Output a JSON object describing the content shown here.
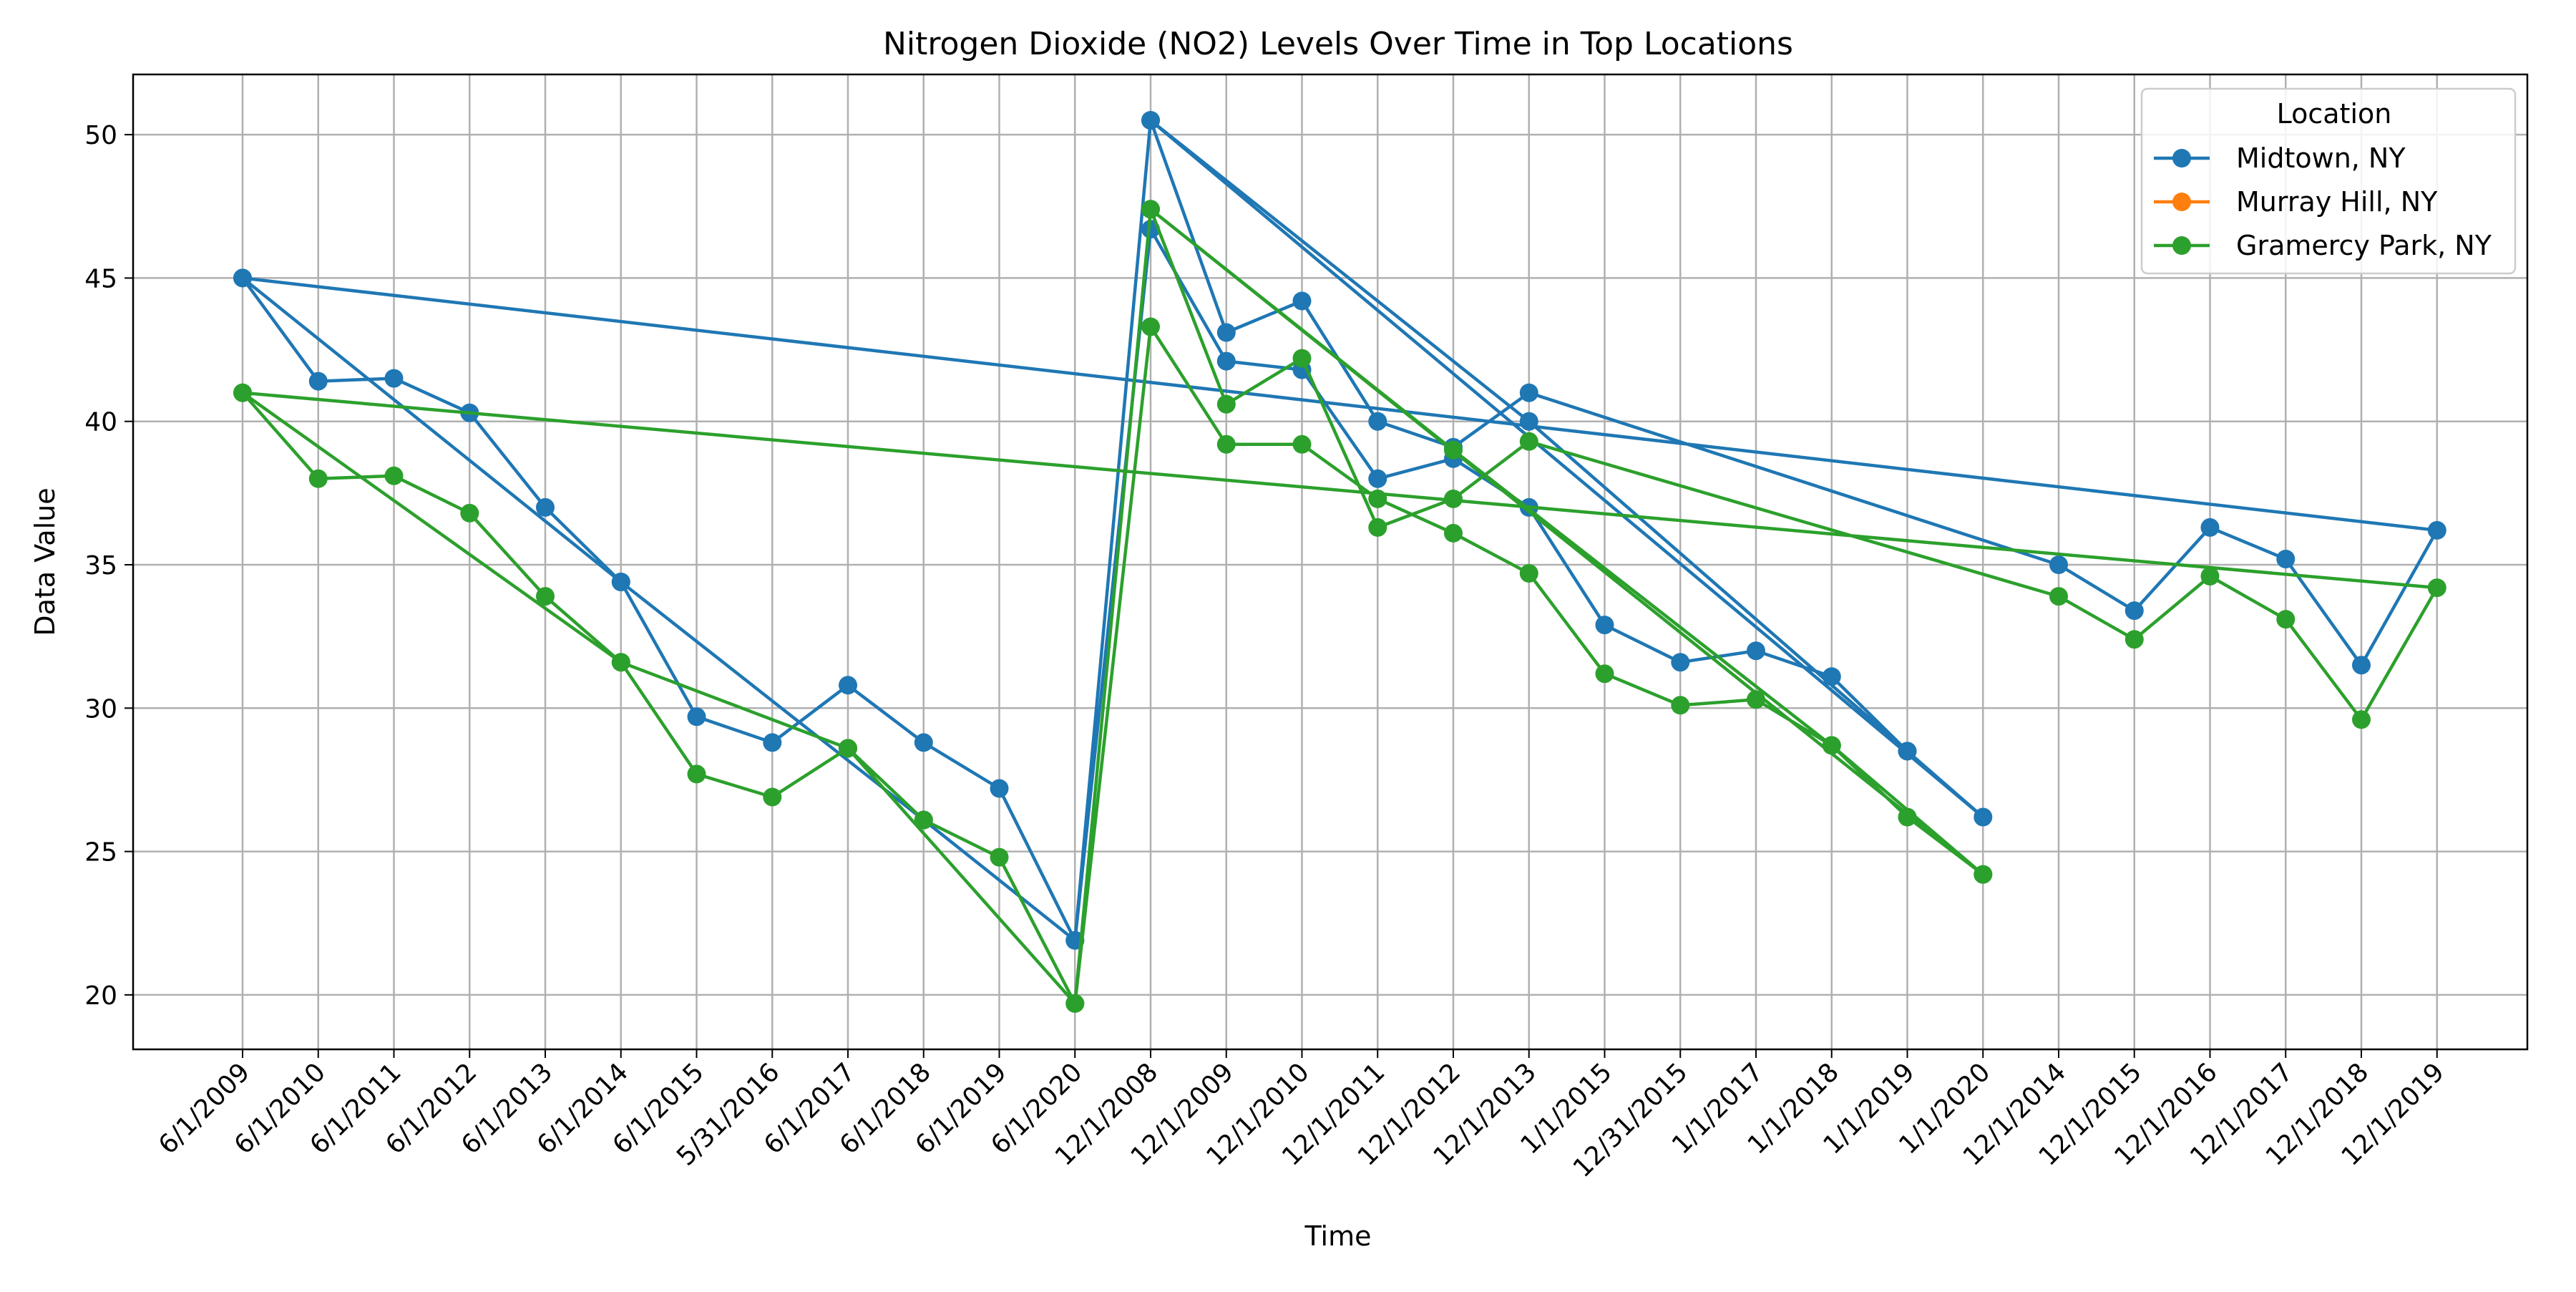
{
  "chart_data": {
    "type": "line",
    "title": "Nitrogen Dioxide (NO2) Levels Over Time in Top Locations",
    "xlabel": "Time",
    "ylabel": "Data Value",
    "ylim": [
      18.1,
      52.1
    ],
    "yticks": [
      20,
      25,
      30,
      35,
      40,
      45,
      50
    ],
    "categories": [
      "6/1/2009",
      "6/1/2010",
      "6/1/2011",
      "6/1/2012",
      "6/1/2013",
      "6/1/2014",
      "6/1/2015",
      "5/31/2016",
      "6/1/2017",
      "6/1/2018",
      "6/1/2019",
      "6/1/2020",
      "12/1/2008",
      "12/1/2009",
      "12/1/2010",
      "12/1/2011",
      "12/1/2012",
      "12/1/2013",
      "1/1/2015",
      "12/31/2015",
      "1/1/2017",
      "1/1/2018",
      "1/1/2019",
      "1/1/2020",
      "12/1/2014",
      "12/1/2015",
      "12/1/2016",
      "12/1/2017",
      "12/1/2018",
      "12/1/2019"
    ],
    "grid": true,
    "legend": {
      "title": "Location",
      "position": "top-right"
    },
    "series": [
      {
        "name": "Midtown, NY",
        "color": "#1f77b4",
        "points": [
          [
            0,
            45.0
          ],
          [
            1,
            41.4
          ],
          [
            2,
            41.5
          ],
          [
            3,
            40.3
          ],
          [
            4,
            37.0
          ],
          [
            5,
            34.4
          ],
          [
            6,
            29.7
          ],
          [
            7,
            28.8
          ],
          [
            8,
            30.8
          ],
          [
            9,
            28.8
          ],
          [
            10,
            27.2
          ],
          [
            11,
            21.9
          ],
          [
            12,
            50.5
          ],
          [
            13,
            43.1
          ],
          [
            14,
            44.2
          ],
          [
            15,
            40.0
          ],
          [
            16,
            39.1
          ],
          [
            17,
            41.0
          ],
          [
            24,
            35.0
          ],
          [
            25,
            33.4
          ],
          [
            26,
            36.3
          ],
          [
            27,
            35.2
          ],
          [
            28,
            31.5
          ],
          [
            29,
            36.2
          ],
          [
            0,
            45.0
          ],
          [
            5,
            34.4
          ],
          [
            9,
            26.1
          ],
          [
            11,
            21.9
          ],
          [
            12,
            46.7
          ],
          [
            13,
            42.1
          ],
          [
            14,
            41.8
          ],
          [
            15,
            38.0
          ],
          [
            16,
            38.7
          ],
          [
            17,
            37.0
          ],
          [
            18,
            32.9
          ],
          [
            19,
            31.6
          ],
          [
            20,
            32.0
          ],
          [
            21,
            31.1
          ],
          [
            22,
            28.5
          ],
          [
            23,
            26.2
          ],
          [
            12,
            50.5
          ],
          [
            17,
            40.0
          ],
          [
            22,
            28.5
          ]
        ]
      },
      {
        "name": "Murray Hill, NY",
        "color": "#ff7f0e",
        "points": []
      },
      {
        "name": "Gramercy Park, NY",
        "color": "#2ca02c",
        "points": [
          [
            0,
            41.0
          ],
          [
            1,
            38.0
          ],
          [
            2,
            38.1
          ],
          [
            3,
            36.8
          ],
          [
            4,
            33.9
          ],
          [
            5,
            31.6
          ],
          [
            6,
            27.7
          ],
          [
            7,
            26.9
          ],
          [
            8,
            28.6
          ],
          [
            9,
            26.1
          ],
          [
            10,
            24.8
          ],
          [
            11,
            19.7
          ],
          [
            12,
            47.4
          ],
          [
            13,
            40.6
          ],
          [
            14,
            42.2
          ],
          [
            15,
            36.3
          ],
          [
            16,
            37.3
          ],
          [
            17,
            39.3
          ],
          [
            24,
            33.9
          ],
          [
            25,
            32.4
          ],
          [
            26,
            34.6
          ],
          [
            27,
            33.1
          ],
          [
            28,
            29.6
          ],
          [
            29,
            34.2
          ],
          [
            0,
            41.0
          ],
          [
            5,
            31.6
          ],
          [
            8,
            28.6
          ],
          [
            11,
            19.7
          ],
          [
            12,
            43.3
          ],
          [
            13,
            39.2
          ],
          [
            14,
            39.2
          ],
          [
            15,
            37.3
          ],
          [
            16,
            36.1
          ],
          [
            17,
            34.7
          ],
          [
            18,
            31.2
          ],
          [
            19,
            30.1
          ],
          [
            20,
            30.3
          ],
          [
            21,
            28.7
          ],
          [
            22,
            26.2
          ],
          [
            23,
            24.2
          ],
          [
            12,
            47.4
          ],
          [
            16,
            39.0
          ],
          [
            21,
            28.7
          ],
          [
            23,
            24.2
          ]
        ]
      }
    ]
  }
}
